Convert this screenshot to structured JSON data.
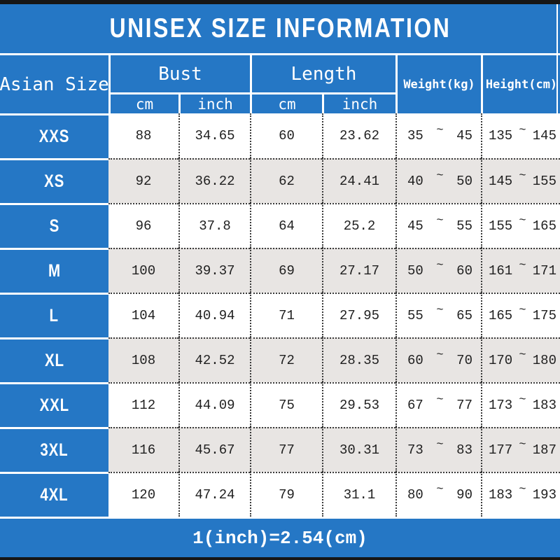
{
  "title": "UNISEX SIZE INFORMATION",
  "footer_note": "1(inch)=2.54(cm)",
  "range_separator": "~",
  "colors": {
    "header_blue": "#2577c5",
    "alt_row_gray": "#e8e5e3",
    "top_bottom_bar": "#161616",
    "text_dark": "#1f1f1f",
    "text_white": "#ffffff"
  },
  "columns": {
    "size": "Asian Size",
    "bust": "Bust",
    "length": "Length",
    "weight": "Weight(kg)",
    "height": "Height(cm)",
    "cm": "cm",
    "inch": "inch"
  },
  "rows": [
    {
      "size": "XXS",
      "bust_cm": "88",
      "bust_inch": "34.65",
      "length_cm": "60",
      "length_inch": "23.62",
      "weight_min": "35",
      "weight_max": "45",
      "height_min": "135",
      "height_max": "145"
    },
    {
      "size": "XS",
      "bust_cm": "92",
      "bust_inch": "36.22",
      "length_cm": "62",
      "length_inch": "24.41",
      "weight_min": "40",
      "weight_max": "50",
      "height_min": "145",
      "height_max": "155"
    },
    {
      "size": "S",
      "bust_cm": "96",
      "bust_inch": "37.8",
      "length_cm": "64",
      "length_inch": "25.2",
      "weight_min": "45",
      "weight_max": "55",
      "height_min": "155",
      "height_max": "165"
    },
    {
      "size": "M",
      "bust_cm": "100",
      "bust_inch": "39.37",
      "length_cm": "69",
      "length_inch": "27.17",
      "weight_min": "50",
      "weight_max": "60",
      "height_min": "161",
      "height_max": "171"
    },
    {
      "size": "L",
      "bust_cm": "104",
      "bust_inch": "40.94",
      "length_cm": "71",
      "length_inch": "27.95",
      "weight_min": "55",
      "weight_max": "65",
      "height_min": "165",
      "height_max": "175"
    },
    {
      "size": "XL",
      "bust_cm": "108",
      "bust_inch": "42.52",
      "length_cm": "72",
      "length_inch": "28.35",
      "weight_min": "60",
      "weight_max": "70",
      "height_min": "170",
      "height_max": "180"
    },
    {
      "size": "XXL",
      "bust_cm": "112",
      "bust_inch": "44.09",
      "length_cm": "75",
      "length_inch": "29.53",
      "weight_min": "67",
      "weight_max": "77",
      "height_min": "173",
      "height_max": "183"
    },
    {
      "size": "3XL",
      "bust_cm": "116",
      "bust_inch": "45.67",
      "length_cm": "77",
      "length_inch": "30.31",
      "weight_min": "73",
      "weight_max": "83",
      "height_min": "177",
      "height_max": "187"
    },
    {
      "size": "4XL",
      "bust_cm": "120",
      "bust_inch": "47.24",
      "length_cm": "79",
      "length_inch": "31.1",
      "weight_min": "80",
      "weight_max": "90",
      "height_min": "183",
      "height_max": "193"
    }
  ]
}
